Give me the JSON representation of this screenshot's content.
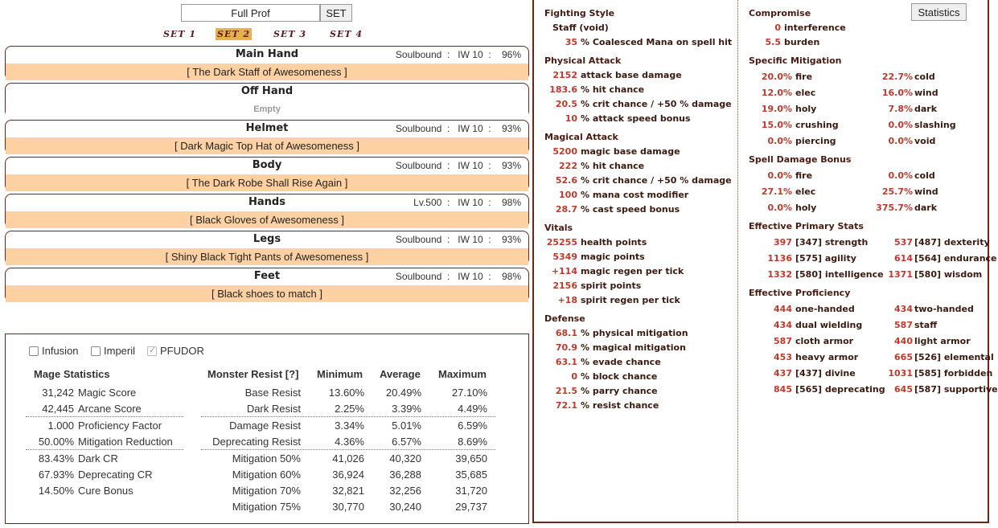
{
  "name_input": "Full Prof",
  "set_button": "SET",
  "sets": [
    "SET 1",
    "SET 2",
    "SET 3",
    "SET 4"
  ],
  "active_set": "SET 2",
  "equipment": [
    {
      "slot": "Main Hand",
      "meta": "Soulbound  :   IW 10  :    96%",
      "item": "[ The Dark Staff of Awesomeness ]"
    },
    {
      "slot": "Off Hand",
      "meta": "",
      "item": "Empty"
    },
    {
      "slot": "Helmet",
      "meta": "Soulbound  :   IW 10  :    93%",
      "item": "[ Dark Magic Top Hat of Awesomeness ]"
    },
    {
      "slot": "Body",
      "meta": "Soulbound  :   IW 10  :    93%",
      "item": "[ The Dark Robe Shall Rise Again ]"
    },
    {
      "slot": "Hands",
      "meta": "Lv.500  :   IW 10  :    98%",
      "item": "[ Black Gloves of Awesomeness ]"
    },
    {
      "slot": "Legs",
      "meta": "Soulbound  :   IW 10  :    93%",
      "item": "[ Shiny Black Tight Pants of Awesomeness ]"
    },
    {
      "slot": "Feet",
      "meta": "Soulbound  :   IW 10  :    98%",
      "item": "[ Black shoes to match ]"
    }
  ],
  "calc": {
    "options": [
      {
        "label": "Infusion",
        "checked": false
      },
      {
        "label": "Imperil",
        "checked": false
      },
      {
        "label": "PFUDOR",
        "checked": true
      }
    ],
    "mage_header": "Mage Statistics",
    "mage_stats": [
      {
        "value": "31,242",
        "label": "Magic Score"
      },
      {
        "value": "42,445",
        "label": "Arcane Score"
      },
      {
        "value": "1.000",
        "label": "Proficiency Factor"
      },
      {
        "value": "50.00%",
        "label": "Mitigation Reduction"
      },
      {
        "value": "83.43%",
        "label": "Dark CR"
      },
      {
        "value": "67.93%",
        "label": "Deprecating CR"
      },
      {
        "value": "14.50%",
        "label": "Cure Bonus"
      }
    ],
    "resist_headers": [
      "Monster Resist [?]",
      "Minimum",
      "Average",
      "Maximum"
    ],
    "resist_rows": [
      {
        "label": "Base Resist",
        "min": "13.60%",
        "avg": "20.49%",
        "max": "27.10%"
      },
      {
        "label": "Dark Resist",
        "min": "2.25%",
        "avg": "3.39%",
        "max": "4.49%"
      },
      {
        "label": "Damage Resist",
        "min": "3.34%",
        "avg": "5.01%",
        "max": "6.59%"
      },
      {
        "label": "Deprecating Resist",
        "min": "4.36%",
        "avg": "6.57%",
        "max": "8.69%"
      },
      {
        "label": "Mitigation 50%",
        "min": "41,026",
        "avg": "40,320",
        "max": "39,650"
      },
      {
        "label": "Mitigation 60%",
        "min": "36,924",
        "avg": "36,288",
        "max": "35,685"
      },
      {
        "label": "Mitigation 70%",
        "min": "32,821",
        "avg": "32,256",
        "max": "31,720"
      },
      {
        "label": "Mitigation 75%",
        "min": "30,770",
        "avg": "30,240",
        "max": "29,737"
      }
    ]
  },
  "stats_button": "Statistics",
  "left_col": [
    {
      "header": "Fighting Style"
    },
    {
      "label": "Staff (void)",
      "plain": true
    },
    {
      "value": "35",
      "label": "% Coalesced Mana on spell hit"
    },
    {
      "header": "Physical Attack"
    },
    {
      "value": "2152",
      "label": "attack base damage"
    },
    {
      "value": "183.6",
      "label": "% hit chance"
    },
    {
      "value": "20.5",
      "label": "% crit chance / +50 % damage"
    },
    {
      "value": "10",
      "label": "% attack speed bonus"
    },
    {
      "header": "Magical Attack"
    },
    {
      "value": "5200",
      "label": "magic base damage"
    },
    {
      "value": "222",
      "label": "% hit chance"
    },
    {
      "value": "52.6",
      "label": "% crit chance / +50 % damage"
    },
    {
      "value": "100",
      "label": "% mana cost modifier"
    },
    {
      "value": "28.7",
      "label": "% cast speed bonus"
    },
    {
      "header": "Vitals"
    },
    {
      "value": "25255",
      "label": "health points"
    },
    {
      "value": "5349",
      "label": "magic points"
    },
    {
      "value": "+114",
      "label": "magic regen per tick"
    },
    {
      "value": "2156",
      "label": "spirit points"
    },
    {
      "value": "+18",
      "label": "spirit regen per tick"
    },
    {
      "header": "Defense"
    },
    {
      "value": "68.1",
      "label": "% physical mitigation"
    },
    {
      "value": "70.9",
      "label": "% magical mitigation"
    },
    {
      "value": "63.1",
      "label": "% evade chance"
    },
    {
      "value": "0",
      "label": "% block chance"
    },
    {
      "value": "21.5",
      "label": "% parry chance"
    },
    {
      "value": "72.1",
      "label": "% resist chance"
    }
  ],
  "right_col": {
    "compromise_header": "Compromise",
    "compromise": [
      {
        "value": "0",
        "label": "interference"
      },
      {
        "value": "5.5",
        "label": "burden"
      }
    ],
    "mitigation_header": "Specific Mitigation",
    "mitigation": [
      [
        {
          "value": "20.0%",
          "label": "fire"
        },
        {
          "value": "22.7%",
          "label": "cold"
        }
      ],
      [
        {
          "value": "12.0%",
          "label": "elec"
        },
        {
          "value": "16.0%",
          "label": "wind"
        }
      ],
      [
        {
          "value": "19.0%",
          "label": "holy"
        },
        {
          "value": "7.8%",
          "label": "dark"
        }
      ],
      [
        {
          "value": "15.0%",
          "label": "crushing"
        },
        {
          "value": "0.0%",
          "label": "slashing"
        }
      ],
      [
        {
          "value": "0.0%",
          "label": "piercing"
        },
        {
          "value": "0.0%",
          "label": "void"
        }
      ]
    ],
    "spell_header": "Spell Damage Bonus",
    "spell": [
      [
        {
          "value": "0.0%",
          "label": "fire"
        },
        {
          "value": "0.0%",
          "label": "cold"
        }
      ],
      [
        {
          "value": "27.1%",
          "label": "elec"
        },
        {
          "value": "25.7%",
          "label": "wind"
        }
      ],
      [
        {
          "value": "0.0%",
          "label": "holy"
        },
        {
          "value": "375.7%",
          "label": "dark"
        }
      ]
    ],
    "primary_header": "Effective Primary Stats",
    "primary": [
      [
        {
          "value": "397",
          "label": "[347] strength"
        },
        {
          "value": "537",
          "label": "[487] dexterity"
        }
      ],
      [
        {
          "value": "1136",
          "label": "[575] agility"
        },
        {
          "value": "614",
          "label": "[564] endurance"
        }
      ],
      [
        {
          "value": "1332",
          "label": "[580] intelligence"
        },
        {
          "value": "1371",
          "label": "[580] wisdom"
        }
      ]
    ],
    "prof_header": "Effective Proficiency",
    "prof": [
      [
        {
          "value": "444",
          "label": "one-handed"
        },
        {
          "value": "434",
          "label": "two-handed"
        }
      ],
      [
        {
          "value": "434",
          "label": "dual wielding"
        },
        {
          "value": "587",
          "label": "staff"
        }
      ],
      [
        {
          "value": "587",
          "label": "cloth armor"
        },
        {
          "value": "440",
          "label": "light armor"
        }
      ],
      [
        {
          "value": "453",
          "label": "heavy armor"
        },
        {
          "value": "665",
          "label": "[526] elemental"
        }
      ],
      [
        {
          "value": "437",
          "label": "[437] divine"
        },
        {
          "value": "1031",
          "label": "[585] forbidden"
        }
      ],
      [
        {
          "value": "845",
          "label": "[565] deprecating"
        },
        {
          "value": "645",
          "label": "[587] supportive"
        }
      ]
    ]
  }
}
